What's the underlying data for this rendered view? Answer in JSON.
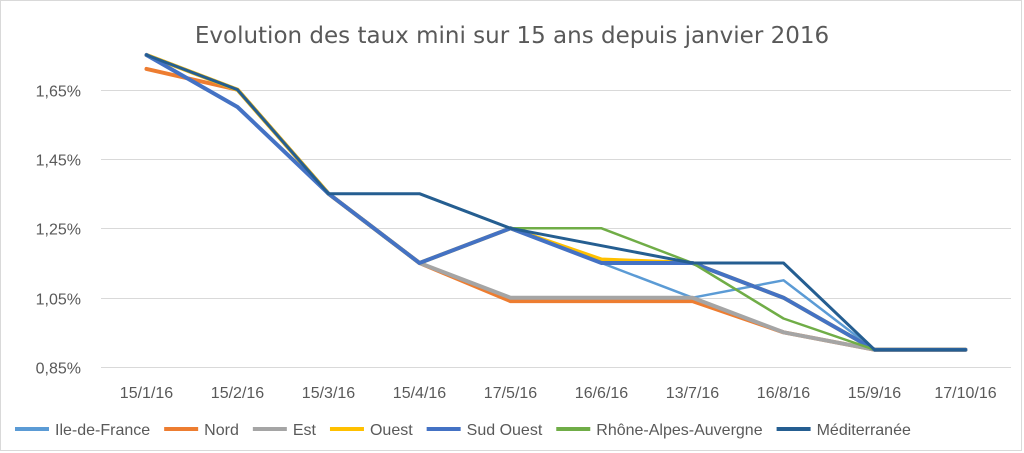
{
  "chart_data": {
    "type": "line",
    "title": "Evolution des taux mini sur 15 ans depuis janvier 2016",
    "xlabel": "",
    "ylabel": "",
    "categories": [
      "15/1/16",
      "15/2/16",
      "15/3/16",
      "15/4/16",
      "17/5/16",
      "16/6/16",
      "13/7/16",
      "16/8/16",
      "15/9/16",
      "17/10/16"
    ],
    "ylim": [
      0.85,
      1.75
    ],
    "yticks": [
      0.85,
      1.05,
      1.25,
      1.45,
      1.65
    ],
    "ytick_labels": [
      "0,85%",
      "1,05%",
      "1,25%",
      "1,45%",
      "1,65%"
    ],
    "grid": true,
    "legend_position": "bottom",
    "series": [
      {
        "name": "Ile-de-France",
        "color": "#5b9bd5",
        "width": 2.5,
        "values": [
          1.75,
          1.65,
          1.35,
          1.15,
          1.25,
          1.15,
          1.05,
          1.1,
          0.9,
          0.9
        ]
      },
      {
        "name": "Nord",
        "color": "#ed7d31",
        "width": 4,
        "values": [
          1.71,
          1.65,
          1.35,
          1.15,
          1.04,
          1.04,
          1.04,
          0.95,
          0.9,
          0.9
        ]
      },
      {
        "name": "Est",
        "color": "#a5a5a5",
        "width": 4,
        "values": [
          1.75,
          1.65,
          1.35,
          1.15,
          1.05,
          1.05,
          1.05,
          0.95,
          0.9,
          0.9
        ]
      },
      {
        "name": "Ouest",
        "color": "#ffc000",
        "width": 4,
        "values": [
          1.75,
          1.65,
          1.35,
          1.15,
          1.25,
          1.16,
          1.15,
          1.05,
          0.9,
          0.9
        ]
      },
      {
        "name": "Sud Ouest",
        "color": "#4472c4",
        "width": 4,
        "values": [
          1.75,
          1.6,
          1.35,
          1.15,
          1.25,
          1.15,
          1.15,
          1.05,
          0.9,
          0.9
        ]
      },
      {
        "name": "Rhône-Alpes-Auvergne",
        "color": "#70ad47",
        "width": 2.5,
        "values": [
          1.75,
          1.65,
          1.35,
          1.35,
          1.25,
          1.25,
          1.15,
          0.99,
          0.9,
          0.9
        ]
      },
      {
        "name": "Méditerranée",
        "color": "#255e91",
        "width": 3,
        "values": [
          1.75,
          1.65,
          1.35,
          1.35,
          1.25,
          1.2,
          1.15,
          1.15,
          0.9,
          0.9
        ]
      }
    ]
  }
}
